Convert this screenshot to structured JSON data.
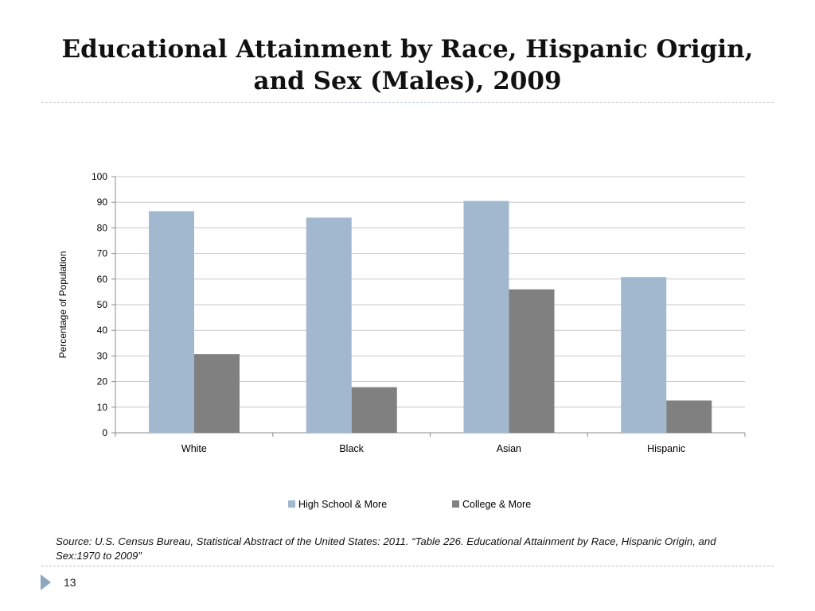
{
  "slide": {
    "title_line1": "Educational Attainment by Race, Hispanic Origin,",
    "title_line2": "and Sex (Males), 2009",
    "source": "Source: U.S. Census Bureau, Statistical Abstract of the United States: 2011. “Table 226. Educational Attainment by Race, Hispanic Origin, and Sex:1970 to 2009”",
    "page_number": "13"
  },
  "colors": {
    "high_school": "#a2b8cf",
    "college": "#808080",
    "gridline": "#c8c8c8",
    "axis": "#8c8c8c",
    "footer_arrow": "#8ea7c0"
  },
  "chart_data": {
    "type": "bar",
    "title": "",
    "xlabel": "",
    "ylabel": "Percentage of Population",
    "ylim": [
      0,
      100
    ],
    "yticks": [
      "0",
      "10",
      "20",
      "30",
      "40",
      "50",
      "60",
      "70",
      "80",
      "90",
      "100"
    ],
    "categories": [
      "White",
      "Black",
      "Asian",
      "Hispanic"
    ],
    "series": [
      {
        "name": "High School & More",
        "values": [
          86.5,
          84,
          90.5,
          60.8
        ]
      },
      {
        "name": "College & More",
        "values": [
          30.7,
          17.8,
          56,
          12.6
        ]
      }
    ],
    "grid": true,
    "legend_position": "bottom"
  }
}
